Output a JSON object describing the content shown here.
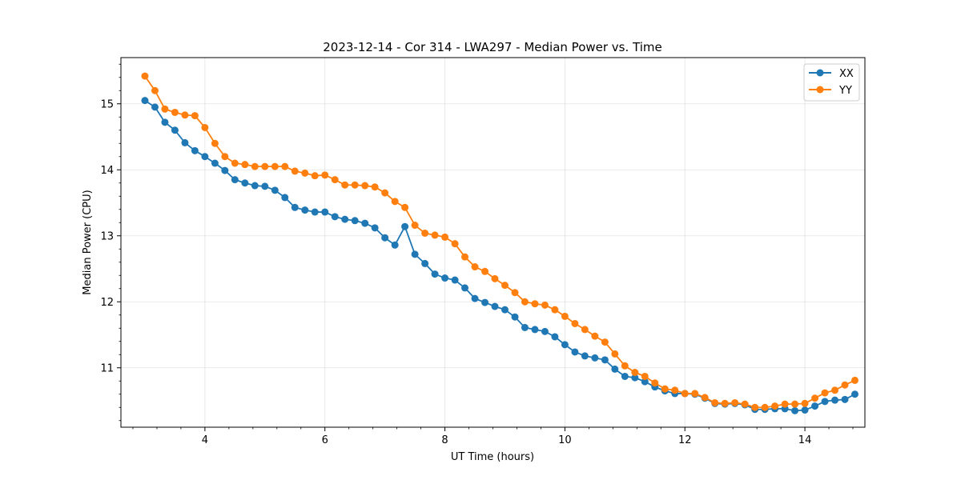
{
  "chart_data": {
    "type": "line",
    "title": "2023-12-14 - Cor 314 - LWA297 - Median Power vs. Time",
    "xlabel": "UT Time (hours)",
    "ylabel": "Median Power (CPU)",
    "xlim": [
      2.6,
      15.0
    ],
    "ylim": [
      10.1,
      15.7
    ],
    "xticks": [
      4,
      6,
      8,
      10,
      12,
      14
    ],
    "yticks": [
      11,
      12,
      13,
      14,
      15
    ],
    "grid": true,
    "legend_position": "top-right",
    "x": [
      3.0,
      3.167,
      3.333,
      3.5,
      3.667,
      3.833,
      4.0,
      4.167,
      4.333,
      4.5,
      4.667,
      4.833,
      5.0,
      5.167,
      5.333,
      5.5,
      5.667,
      5.833,
      6.0,
      6.167,
      6.333,
      6.5,
      6.667,
      6.833,
      7.0,
      7.167,
      7.333,
      7.5,
      7.667,
      7.833,
      8.0,
      8.167,
      8.333,
      8.5,
      8.667,
      8.833,
      9.0,
      9.167,
      9.333,
      9.5,
      9.667,
      9.833,
      10.0,
      10.167,
      10.333,
      10.5,
      10.667,
      10.833,
      11.0,
      11.167,
      11.333,
      11.5,
      11.667,
      11.833,
      12.0,
      12.167,
      12.333,
      12.5,
      12.667,
      12.833,
      13.0,
      13.167,
      13.333,
      13.5,
      13.667,
      13.833,
      14.0,
      14.167,
      14.333,
      14.5,
      14.667,
      14.833
    ],
    "series": [
      {
        "name": "XX",
        "color": "#1f77b4",
        "values": [
          15.05,
          14.95,
          14.72,
          14.6,
          14.41,
          14.29,
          14.2,
          14.1,
          13.99,
          13.85,
          13.8,
          13.76,
          13.75,
          13.69,
          13.58,
          13.43,
          13.39,
          13.36,
          13.36,
          13.29,
          13.25,
          13.23,
          13.19,
          13.12,
          12.97,
          12.86,
          13.14,
          12.72,
          12.58,
          12.42,
          12.36,
          12.33,
          12.21,
          12.05,
          11.99,
          11.93,
          11.88,
          11.77,
          11.61,
          11.58,
          11.55,
          11.47,
          11.35,
          11.24,
          11.18,
          11.15,
          11.12,
          10.98,
          10.87,
          10.85,
          10.79,
          10.71,
          10.65,
          10.61,
          10.61,
          10.6,
          10.54,
          10.46,
          10.45,
          10.46,
          10.44,
          10.37,
          10.37,
          10.38,
          10.38,
          10.35,
          10.36,
          10.42,
          10.49,
          10.51,
          10.52,
          10.6
        ]
      },
      {
        "name": "YY",
        "color": "#ff7f0e",
        "values": [
          15.42,
          15.2,
          14.92,
          14.87,
          14.83,
          14.82,
          14.64,
          14.4,
          14.2,
          14.1,
          14.08,
          14.05,
          14.05,
          14.05,
          14.05,
          13.98,
          13.95,
          13.91,
          13.92,
          13.85,
          13.77,
          13.77,
          13.76,
          13.74,
          13.65,
          13.52,
          13.43,
          13.16,
          13.04,
          13.01,
          12.98,
          12.88,
          12.68,
          12.53,
          12.46,
          12.35,
          12.25,
          12.14,
          12.0,
          11.97,
          11.95,
          11.88,
          11.78,
          11.67,
          11.58,
          11.48,
          11.39,
          11.21,
          11.03,
          10.93,
          10.87,
          10.77,
          10.68,
          10.66,
          10.61,
          10.61,
          10.55,
          10.47,
          10.46,
          10.47,
          10.45,
          10.4,
          10.4,
          10.42,
          10.45,
          10.45,
          10.46,
          10.54,
          10.62,
          10.66,
          10.74,
          10.81
        ]
      }
    ]
  }
}
